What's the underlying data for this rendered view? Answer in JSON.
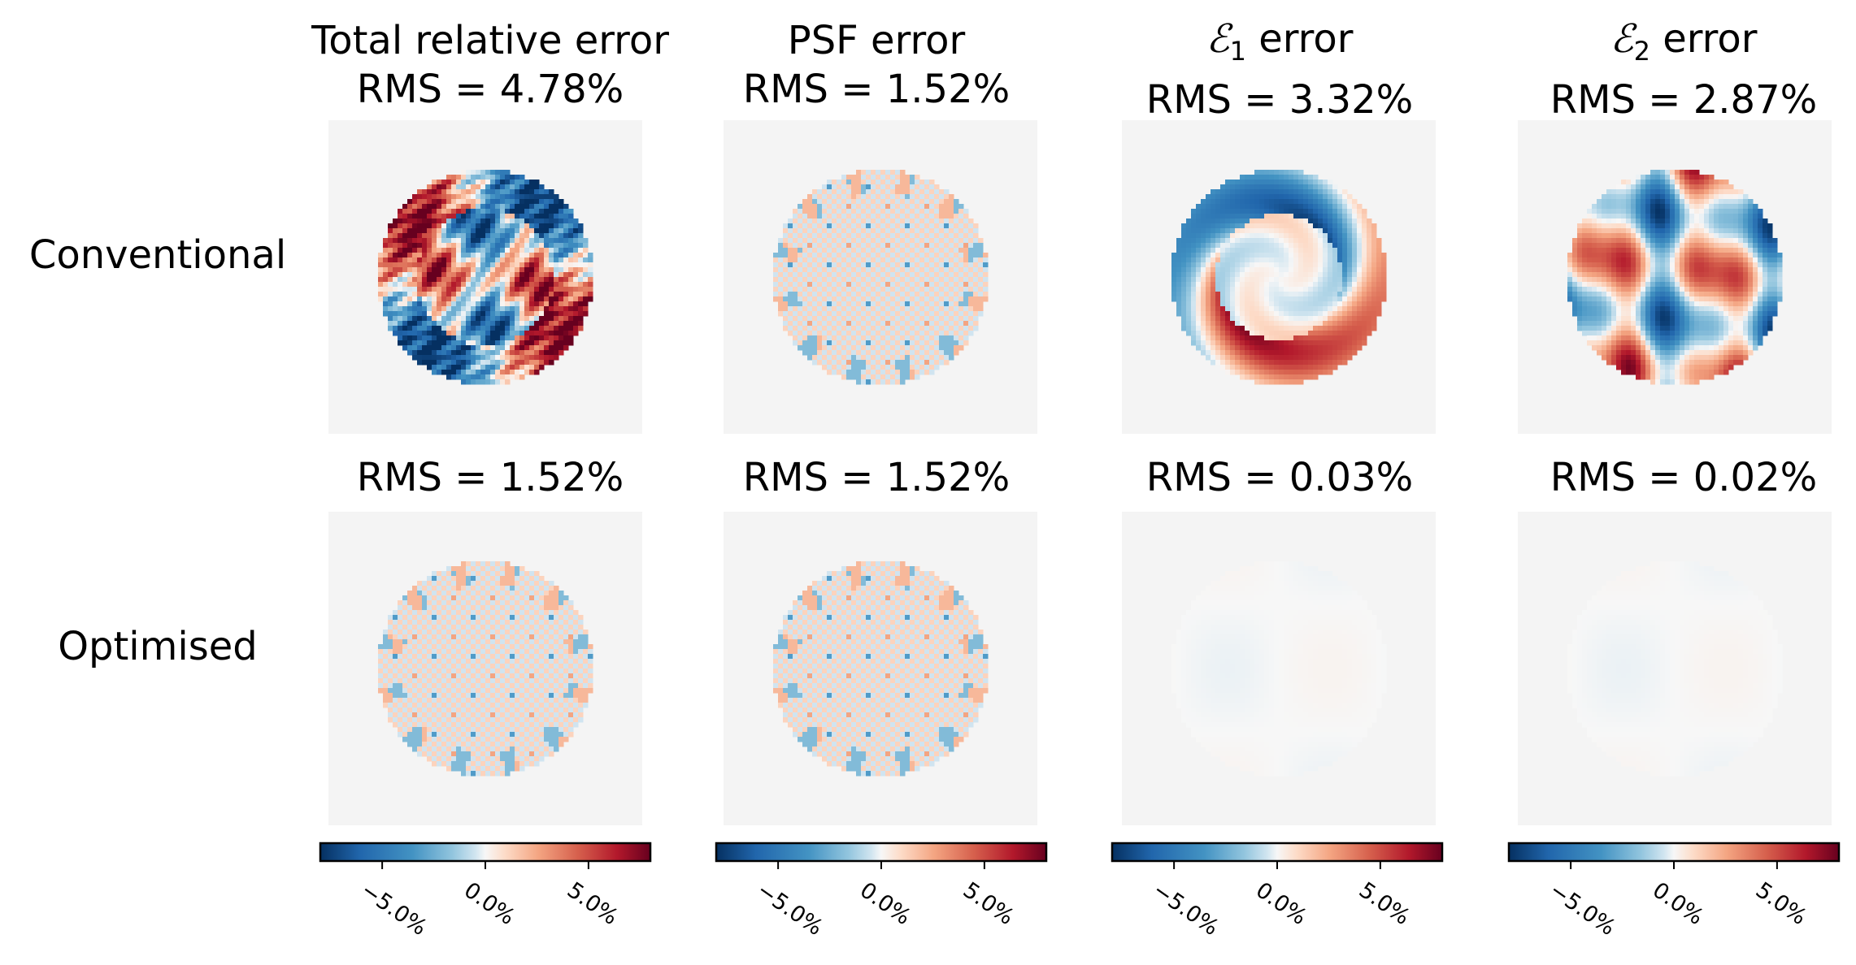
{
  "figure": {
    "row_labels": [
      "Conventional",
      "Optimised"
    ],
    "column_titles": [
      {
        "title": "Total relative error",
        "calligraphic": "",
        "subscript": ""
      },
      {
        "title": "PSF error",
        "calligraphic": "",
        "subscript": ""
      },
      {
        "title": " error",
        "calligraphic": "ℰ",
        "subscript": "1"
      },
      {
        "title": " error",
        "calligraphic": "ℰ",
        "subscript": "2"
      }
    ]
  },
  "chart_data": {
    "type": "heatmap",
    "colormap": "RdBu_r (blue negative, white zero, red positive)",
    "colors": {
      "neg": "#0d4a8c",
      "zero": "#f7f7f7",
      "pos": "#7a0018",
      "background": "#f4f4f4"
    },
    "color_range": [
      -8.0,
      8.0
    ],
    "colorbar": {
      "ticks": [
        -5.0,
        0.0,
        5.0
      ],
      "tick_labels": [
        "−5.0%",
        "0.0%",
        "5.0%"
      ]
    },
    "rows": [
      {
        "name": "Conventional",
        "panels": [
          {
            "column": "Total relative error",
            "rms_label": "RMS = 4.78%",
            "rms": 4.78,
            "pattern": "total-conv"
          },
          {
            "column": "PSF error",
            "rms_label": "RMS = 1.52%",
            "rms": 1.52,
            "pattern": "psf"
          },
          {
            "column": "E1 error",
            "rms_label": "RMS = 3.32%",
            "rms": 3.32,
            "pattern": "e1-conv"
          },
          {
            "column": "E2 error",
            "rms_label": "RMS = 2.87%",
            "rms": 2.87,
            "pattern": "e2-conv"
          }
        ]
      },
      {
        "name": "Optimised",
        "panels": [
          {
            "column": "Total relative error",
            "rms_label": "RMS = 1.52%",
            "rms": 1.52,
            "pattern": "psf"
          },
          {
            "column": "PSF error",
            "rms_label": "RMS = 1.52%",
            "rms": 1.52,
            "pattern": "psf"
          },
          {
            "column": "E1 error",
            "rms_label": "RMS = 0.03%",
            "rms": 0.03,
            "pattern": "flat"
          },
          {
            "column": "E2 error",
            "rms_label": "RMS = 0.02%",
            "rms": 0.02,
            "pattern": "flat"
          }
        ]
      }
    ]
  }
}
